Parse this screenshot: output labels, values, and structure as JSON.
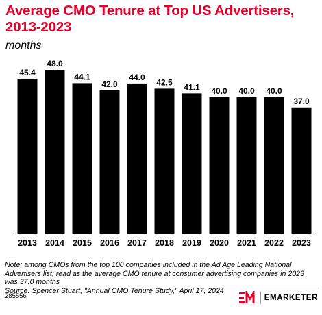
{
  "header": {
    "title": "Average CMO Tenure at Top US Advertisers, 2013-2023",
    "subtitle": "months"
  },
  "chart_data": {
    "type": "bar",
    "categories": [
      "2013",
      "2014",
      "2015",
      "2016",
      "2017",
      "2018",
      "2019",
      "2020",
      "2021",
      "2022",
      "2023"
    ],
    "values": [
      45.4,
      48.0,
      44.1,
      42.0,
      44.0,
      42.5,
      41.1,
      40.0,
      40.0,
      40.0,
      37.0
    ],
    "value_labels": [
      "45.4",
      "48.0",
      "44.1",
      "42.0",
      "44.0",
      "42.5",
      "41.1",
      "40.0",
      "40.0",
      "40.0",
      "37.0"
    ],
    "title": "Average CMO Tenure at Top US Advertisers, 2013-2023",
    "subtitle": "months",
    "ylim": [
      0,
      48
    ],
    "grid": false,
    "bar_color": "#000000"
  },
  "footnotes": {
    "note": "Note: among CMOs from the top 100 companies included in the Ad Age Leading National Advertisers list; read as the average CMO tenure at consumer advertising companies in 2023 was 37.0 months",
    "source": "Source: Spencer Stuart, \"Annual CMO Tenure Study,\" April 17, 2024"
  },
  "footer": {
    "chart_id": "285556",
    "brand_name": "EMARKETER",
    "brand_color": "#e4002b"
  }
}
